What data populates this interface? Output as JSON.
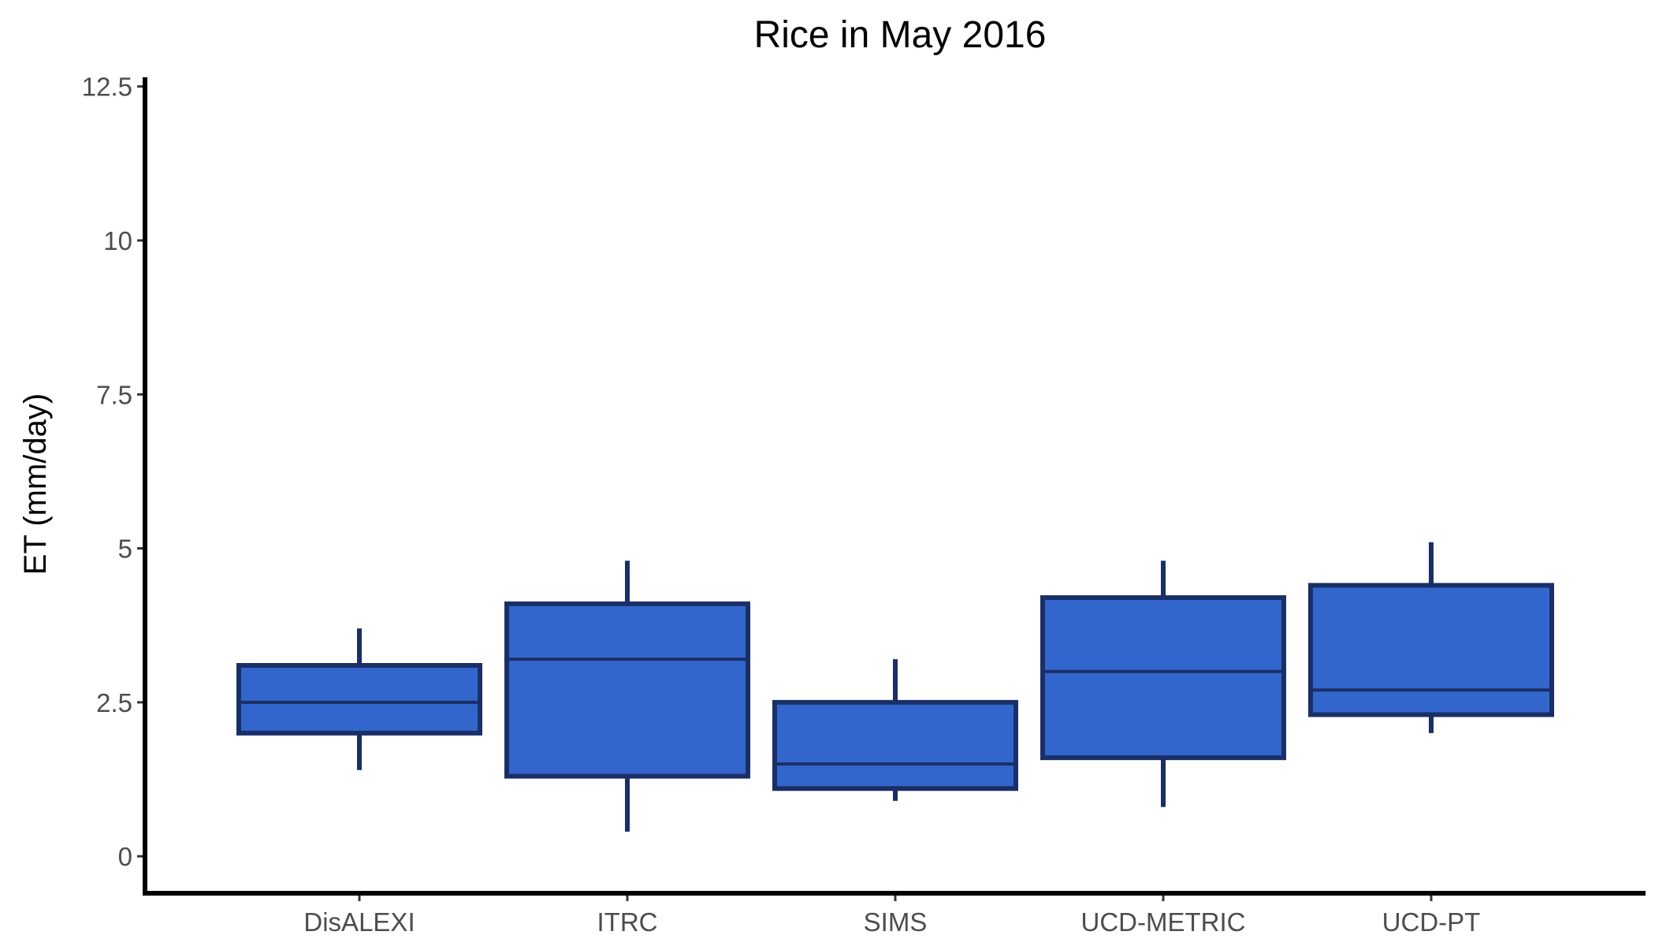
{
  "chart_data": {
    "type": "boxplot",
    "title": "Rice in May 2016",
    "xlabel": "",
    "ylabel": "ET (mm/day)",
    "ylim": [
      -0.6,
      12.65
    ],
    "yticks": [
      0,
      2.5,
      5,
      7.5,
      10,
      12.5
    ],
    "ytick_labels": [
      "0",
      "2.5",
      "5",
      "7.5",
      "10",
      "12.5"
    ],
    "grid": false,
    "legend": "none",
    "fill_color": "#3366cc",
    "line_color": "#1a2f66",
    "categories": [
      "DisALEXI",
      "ITRC",
      "SIMS",
      "UCD-METRIC",
      "UCD-PT"
    ],
    "boxes": [
      {
        "category": "DisALEXI",
        "whisker_low": 1.4,
        "q1": 2.0,
        "median": 2.5,
        "q3": 3.1,
        "whisker_high": 3.7
      },
      {
        "category": "ITRC",
        "whisker_low": 0.4,
        "q1": 1.3,
        "median": 3.2,
        "q3": 4.1,
        "whisker_high": 4.8
      },
      {
        "category": "SIMS",
        "whisker_low": 0.9,
        "q1": 1.1,
        "median": 1.5,
        "q3": 2.5,
        "whisker_high": 3.2
      },
      {
        "category": "UCD-METRIC",
        "whisker_low": 0.8,
        "q1": 1.6,
        "median": 3.0,
        "q3": 4.2,
        "whisker_high": 4.8
      },
      {
        "category": "UCD-PT",
        "whisker_low": 2.0,
        "q1": 2.3,
        "median": 2.7,
        "q3": 4.4,
        "whisker_high": 5.1
      }
    ]
  }
}
